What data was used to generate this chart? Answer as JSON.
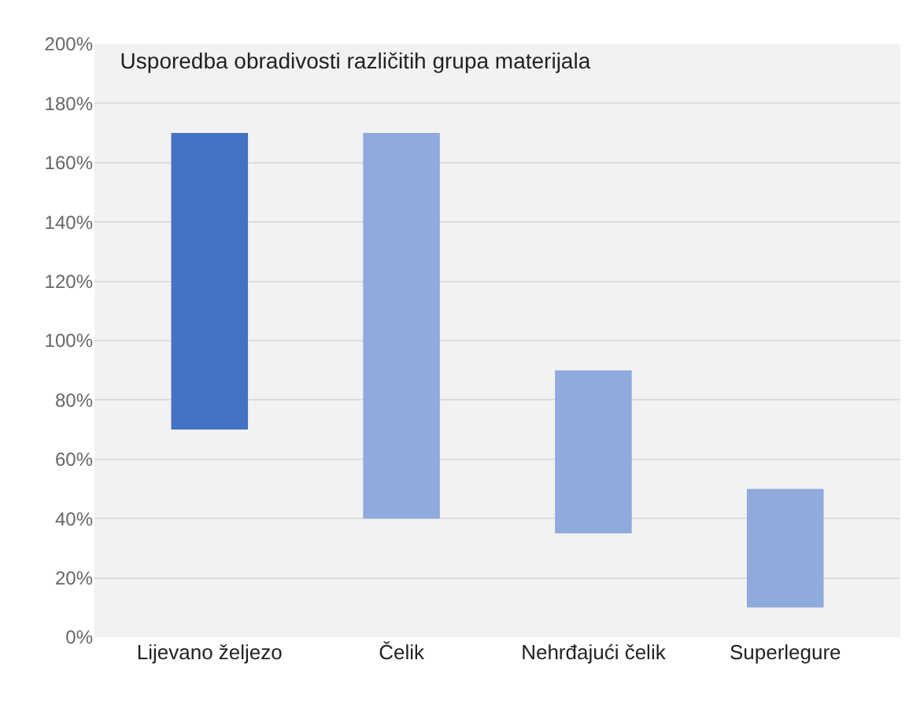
{
  "chart_data": {
    "type": "bar",
    "title": "Usporedba obradivosti različitih grupa materijala",
    "categories": [
      "Lijevano željezo",
      "Čelik",
      "Nehrđajući čelik",
      "Superlegure"
    ],
    "base": [
      70,
      40,
      35,
      10
    ],
    "values": [
      100,
      130,
      55,
      40
    ],
    "colors": [
      "#4472c4",
      "#8faadc",
      "#8faadc",
      "#8faadc"
    ],
    "ylim": [
      0,
      200
    ],
    "yticks": [
      {
        "value": 0,
        "label": "0%"
      },
      {
        "value": 20,
        "label": "20%"
      },
      {
        "value": 40,
        "label": "40%"
      },
      {
        "value": 60,
        "label": "60%"
      },
      {
        "value": 80,
        "label": "80%"
      },
      {
        "value": 100,
        "label": "100%"
      },
      {
        "value": 120,
        "label": "120%"
      },
      {
        "value": 140,
        "label": "140%"
      },
      {
        "value": 160,
        "label": "160%"
      },
      {
        "value": 180,
        "label": "180%"
      },
      {
        "value": 200,
        "label": "200%"
      }
    ],
    "grid": "y"
  }
}
